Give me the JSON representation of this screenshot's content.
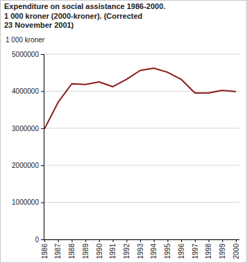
{
  "chart_data": {
    "type": "line",
    "title": "Expenditure on social assistance 1986-2000.\n1 000 kroner (2000-kroner). (Corrected\n23 November 2001)",
    "y_label": "1 000 kroner",
    "categories": [
      "1986",
      "1987",
      "1988",
      "1989",
      "1990",
      "1991",
      "1992",
      "1993",
      "1994",
      "1995",
      "1996",
      "1997",
      "1998",
      "1999",
      "2000"
    ],
    "values": [
      2980000,
      3700000,
      4200000,
      4180000,
      4250000,
      4120000,
      4320000,
      4560000,
      4620000,
      4510000,
      4320000,
      3950000,
      3950000,
      4020000,
      3990000
    ],
    "color": "#8b1a1a",
    "ylim": [
      0,
      5000000
    ],
    "yticks": [
      0,
      1000000,
      2000000,
      3000000,
      4000000,
      5000000
    ],
    "grid": true
  }
}
